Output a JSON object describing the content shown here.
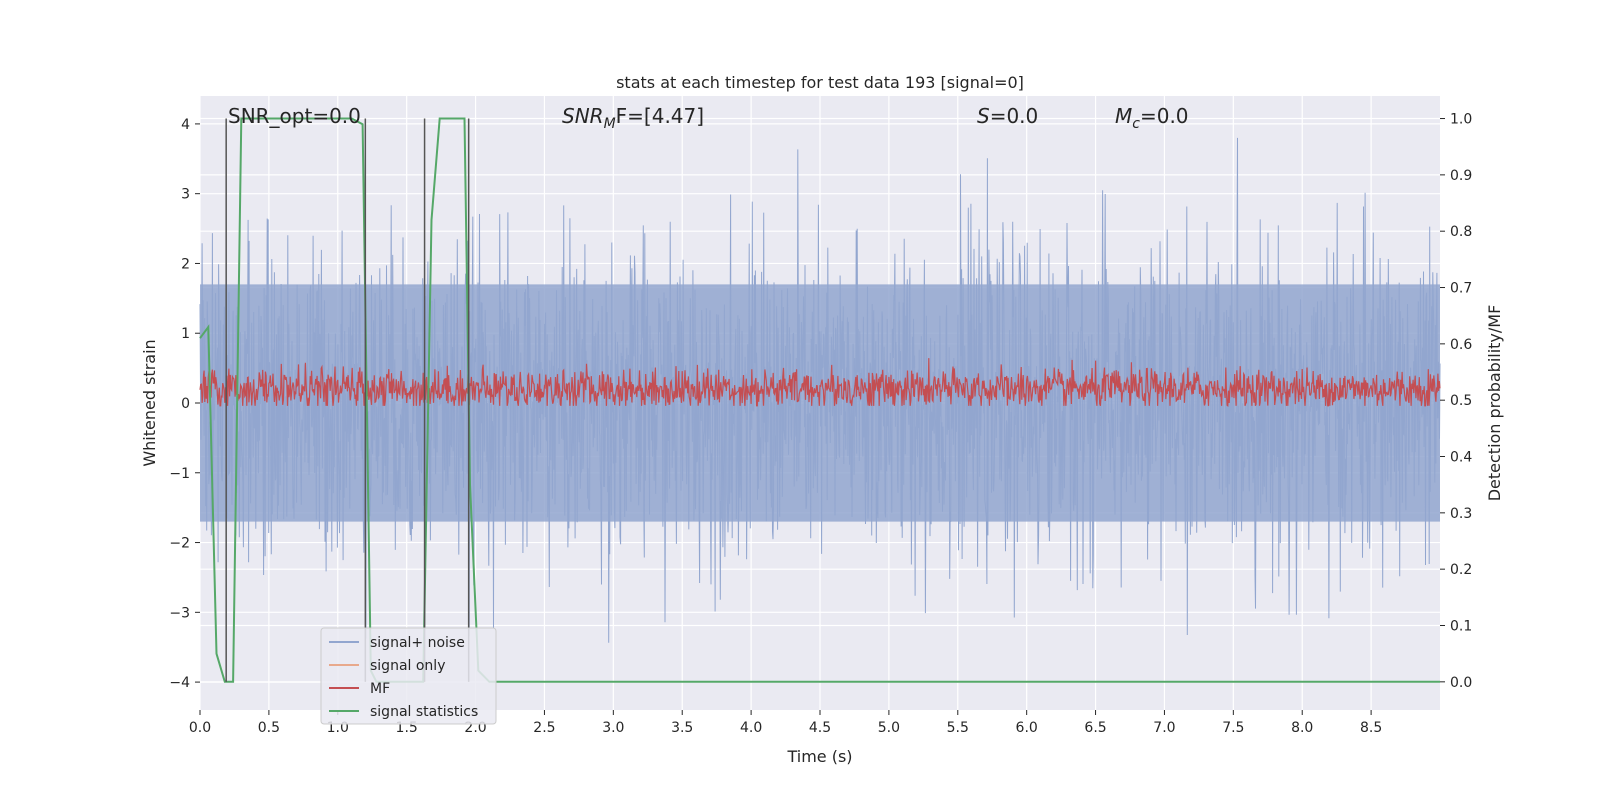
{
  "chart_data": {
    "type": "line",
    "title": "stats at each timestep for test data 193 [signal=0]",
    "xlabel": "Time (s)",
    "ylabel_left": "Whitened strain",
    "ylabel_right": "Detection probability/MF",
    "xlim": [
      0.0,
      9.0
    ],
    "ylim_left": [
      -4.4,
      4.4
    ],
    "ylim_right": [
      -0.05,
      1.04
    ],
    "x_ticks": [
      "0.0",
      "0.5",
      "1.0",
      "1.5",
      "2.0",
      "2.5",
      "3.0",
      "3.5",
      "4.0",
      "4.5",
      "5.0",
      "5.5",
      "6.0",
      "6.5",
      "7.0",
      "7.5",
      "8.0",
      "8.5"
    ],
    "x_tick_values": [
      0.0,
      0.5,
      1.0,
      1.5,
      2.0,
      2.5,
      3.0,
      3.5,
      4.0,
      4.5,
      5.0,
      5.5,
      6.0,
      6.5,
      7.0,
      7.5,
      8.0,
      8.5
    ],
    "y_left_ticks": [
      "−4",
      "−3",
      "−2",
      "−1",
      "0",
      "1",
      "2",
      "3",
      "4"
    ],
    "y_left_tick_values": [
      -4,
      -3,
      -2,
      -1,
      0,
      1,
      2,
      3,
      4
    ],
    "y_right_ticks": [
      "0.0",
      "0.1",
      "0.2",
      "0.3",
      "0.4",
      "0.5",
      "0.6",
      "0.7",
      "0.8",
      "0.9",
      "1.0"
    ],
    "y_right_tick_values": [
      0.0,
      0.1,
      0.2,
      0.3,
      0.4,
      0.5,
      0.6,
      0.7,
      0.8,
      0.9,
      1.0
    ],
    "grid": true,
    "legend_position": "lower-left",
    "annotations": {
      "snr_opt": "SNR_opt=0.0",
      "snr_mf_base": "SNR",
      "snr_mf_sub": "M",
      "snr_mf_rest": "F=[4.47]",
      "s_label": "S",
      "s_value": "=0.0",
      "mc_base": "M",
      "mc_sub": "c",
      "mc_value": "=0.0"
    },
    "series": [
      {
        "name": "signal+ noise",
        "axis": "left",
        "style": "noise",
        "approx_amplitude": 1.7,
        "approx_peak": 3.8,
        "color": "#92a6cf"
      },
      {
        "name": "signal only",
        "axis": "left",
        "values": [],
        "color": "#e8a98c"
      },
      {
        "name": "MF",
        "axis": "right",
        "style": "noise",
        "approx_mean": 0.52,
        "approx_range": [
          0.49,
          0.61
        ],
        "color": "#c44e52"
      },
      {
        "name": "signal statistics",
        "axis": "right",
        "color": "#55a868",
        "x": [
          0.0,
          0.06,
          0.12,
          0.18,
          0.24,
          0.3,
          1.1,
          1.18,
          1.24,
          1.28,
          1.3,
          1.58,
          1.62,
          1.68,
          1.74,
          1.8,
          1.92,
          1.96,
          2.02,
          2.1,
          9.0
        ],
        "y": [
          0.61,
          0.63,
          0.05,
          0.0,
          0.0,
          1.0,
          1.0,
          0.99,
          0.02,
          0.0,
          0.0,
          0.0,
          0.0,
          0.82,
          1.0,
          1.0,
          1.0,
          0.35,
          0.02,
          0.0,
          0.0
        ]
      },
      {
        "name": "_vlines",
        "axis": "left",
        "color": "#555555",
        "x": [
          0.19,
          1.2,
          1.63,
          1.95
        ]
      }
    ]
  }
}
